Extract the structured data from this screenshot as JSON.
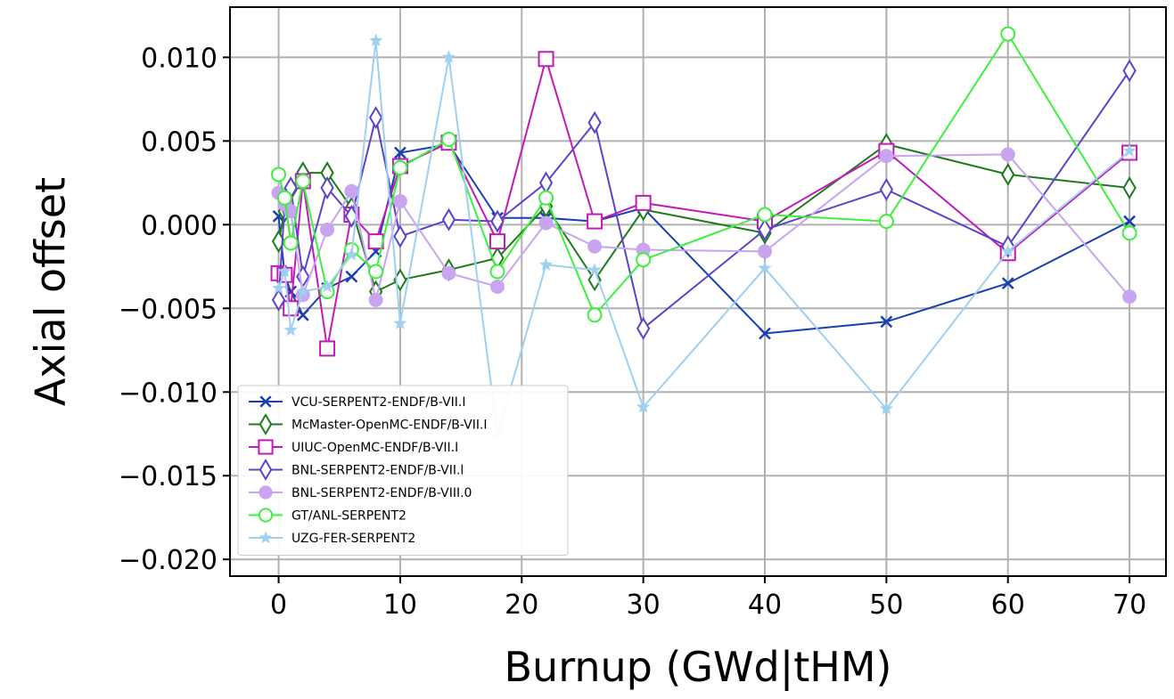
{
  "chart_data": {
    "type": "line",
    "xlabel": "Burnup (GWd|tHM)",
    "ylabel": "Axial offset",
    "xlim": [
      -4,
      73
    ],
    "ylim": [
      -0.021,
      0.013
    ],
    "xticks": [
      0,
      10,
      20,
      30,
      40,
      50,
      60,
      70
    ],
    "xtick_labels": [
      "0",
      "10",
      "20",
      "30",
      "40",
      "50",
      "60",
      "70"
    ],
    "yticks": [
      0.01,
      0.005,
      0.0,
      -0.005,
      -0.01,
      -0.015,
      -0.02
    ],
    "ytick_labels": [
      "0.010",
      "0.005",
      "0.000",
      "−0.005",
      "−0.010",
      "−0.015",
      "−0.020"
    ],
    "grid": true,
    "legend_position": "lower-left",
    "series": [
      {
        "name": "VCU-SERPENT2-ENDF/B-VII.I",
        "color": "#1a3fb0",
        "marker": "x",
        "x": [
          0,
          0.5,
          1,
          2,
          4,
          6,
          8,
          10,
          14,
          18,
          22,
          26,
          30,
          40,
          50,
          60,
          70
        ],
        "y": [
          0.0005,
          -0.003,
          -0.004,
          -0.0054,
          -0.0038,
          -0.0031,
          -0.0016,
          0.0043,
          0.0048,
          0.0004,
          0.0004,
          0.0002,
          0.001,
          -0.0065,
          -0.0058,
          -0.0035,
          0.0002
        ]
      },
      {
        "name": "McMaster-OpenMC-ENDF/B-VII.I",
        "color": "#1e7a1e",
        "marker": "thin-diamond-open",
        "x": [
          0,
          0.5,
          1,
          2,
          4,
          6,
          8,
          10,
          14,
          18,
          22,
          26,
          30,
          40,
          50,
          60,
          70
        ],
        "y": [
          -0.001,
          0.0008,
          0.0021,
          0.0031,
          0.0031,
          0.001,
          -0.004,
          -0.0033,
          -0.0027,
          -0.002,
          0.0011,
          -0.0033,
          0.0009,
          -0.0005,
          0.0048,
          0.003,
          0.0022
        ]
      },
      {
        "name": "UIUC-OpenMC-ENDF/B-VII.I",
        "color": "#c21ab8",
        "marker": "square-open",
        "x": [
          0,
          0.5,
          1,
          2,
          4,
          6,
          8,
          10,
          14,
          18,
          22,
          26,
          30,
          40,
          50,
          60,
          70
        ],
        "y": [
          -0.0029,
          -0.003,
          -0.005,
          0.0026,
          -0.0074,
          0.0006,
          -0.001,
          0.0035,
          0.0049,
          -0.001,
          0.0099,
          0.0002,
          0.0013,
          0.0002,
          0.0044,
          -0.0017,
          0.0043
        ]
      },
      {
        "name": "BNL-SERPENT2-ENDF/B-VII.l",
        "color": "#5b44c9",
        "marker": "thin-diamond-open",
        "x": [
          0,
          0.5,
          1,
          2,
          4,
          6,
          8,
          10,
          14,
          18,
          22,
          26,
          30,
          40,
          50,
          60,
          70
        ],
        "y": [
          -0.0045,
          0.0012,
          0.0022,
          -0.0031,
          0.0022,
          0.0005,
          0.0064,
          -0.0007,
          0.0003,
          0.0002,
          0.0025,
          0.0061,
          -0.0062,
          -0.0003,
          0.0021,
          -0.0013,
          0.0092
        ]
      },
      {
        "name": "BNL-SERPENT2-ENDF/B-VIII.0",
        "color": "#c9a4f0",
        "marker": "circle-filled",
        "x": [
          0,
          0.5,
          1,
          2,
          4,
          6,
          8,
          10,
          14,
          18,
          22,
          26,
          30,
          40,
          50,
          60,
          70
        ],
        "y": [
          0.0019,
          0.0012,
          0.0008,
          -0.0042,
          -0.0003,
          0.002,
          -0.0045,
          0.0014,
          -0.0029,
          -0.0037,
          0.0001,
          -0.0013,
          -0.0015,
          -0.0016,
          0.0041,
          0.0042,
          -0.0043
        ]
      },
      {
        "name": "GT/ANL-SERPENT2",
        "color": "#3ef03e",
        "marker": "circle-open",
        "x": [
          0,
          0.5,
          1,
          2,
          4,
          6,
          8,
          10,
          14,
          18,
          22,
          26,
          30,
          40,
          50,
          60,
          70
        ],
        "y": [
          0.003,
          0.0016,
          -0.0011,
          0.0026,
          -0.004,
          -0.0015,
          -0.0028,
          0.0034,
          0.0051,
          -0.0028,
          0.0016,
          -0.0054,
          -0.0021,
          0.0006,
          0.0002,
          0.0114,
          -0.0005
        ]
      },
      {
        "name": "UZG-FER-SERPENT2",
        "color": "#9fd0f0",
        "marker": "star",
        "x": [
          0,
          0.5,
          1,
          2,
          4,
          6,
          8,
          10,
          14,
          18,
          22,
          26,
          30,
          40,
          50,
          60,
          70
        ],
        "y": [
          -0.0038,
          -0.0028,
          -0.0063,
          -0.004,
          -0.0037,
          -0.0018,
          0.011,
          -0.0059,
          0.01,
          -0.0125,
          -0.0024,
          -0.0027,
          -0.0109,
          -0.0026,
          -0.011,
          -0.0016,
          0.0044
        ]
      }
    ]
  }
}
